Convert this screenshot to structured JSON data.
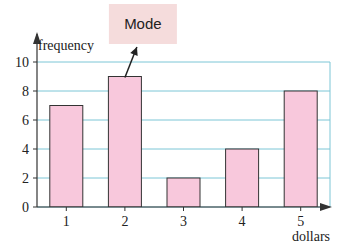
{
  "chart_data": {
    "type": "bar",
    "categories": [
      "1",
      "2",
      "3",
      "4",
      "5"
    ],
    "values": [
      7,
      9,
      2,
      4,
      8
    ],
    "color": "#f8c8dc",
    "ylim": [
      0,
      10
    ],
    "yticks": [
      0,
      2,
      4,
      6,
      8,
      10
    ],
    "grid": true,
    "y_label": "frequency",
    "x_label": "dollars",
    "annotations": [
      "Mode"
    ]
  }
}
